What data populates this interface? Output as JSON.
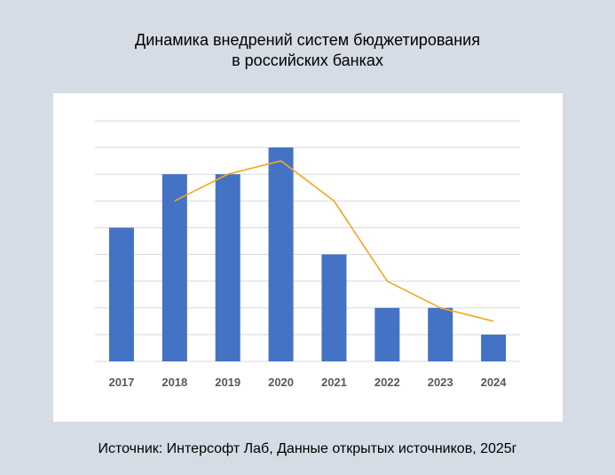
{
  "title_line1": "Динамика внедрений систем бюджетирования",
  "title_line2": "в российских банках",
  "source": "Источник: Интерсофт Лаб,  Данные открытых источников, 2025г",
  "colors": {
    "background": "#d6dce5",
    "bar": "#4472c4",
    "line": "#f5a623",
    "grid": "#d9d9d9"
  },
  "chart_data": {
    "type": "bar",
    "title": "Динамика внедрений систем бюджетирования в российских банках",
    "categories": [
      "2017",
      "2018",
      "2019",
      "2020",
      "2021",
      "2022",
      "2023",
      "2024"
    ],
    "series": [
      {
        "type": "bar",
        "values": [
          5,
          7,
          7,
          8,
          4,
          2,
          2,
          1
        ]
      },
      {
        "type": "line",
        "values": [
          null,
          6,
          7,
          7.5,
          6,
          3,
          2,
          1.5
        ]
      }
    ],
    "ylim": [
      0,
      9
    ],
    "grid": true,
    "legend": "none"
  }
}
